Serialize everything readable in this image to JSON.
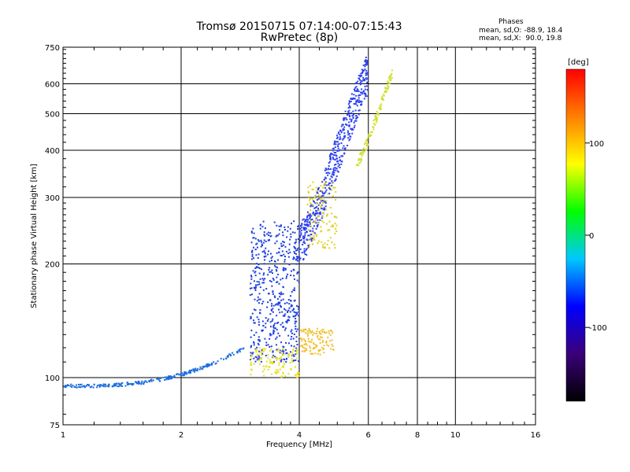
{
  "chart_data": {
    "type": "scatter",
    "title": "Tromsø 20150715 07:14:00-07:15:43",
    "subtitle": "RwPretec (8p)",
    "xlabel": "Frequency [MHz]",
    "ylabel": "Stationary phase Virtual Height [km]",
    "x_scale": "log",
    "y_scale": "log",
    "xlim": [
      1,
      16
    ],
    "ylim": [
      75,
      750
    ],
    "x_ticks": [
      1,
      2,
      4,
      6,
      8,
      10,
      16
    ],
    "y_ticks": [
      75,
      100,
      200,
      300,
      400,
      500,
      600,
      750
    ],
    "grid": true,
    "phases_info": {
      "title": "Phases",
      "line_o": "mean, sd,O: -88.9, 18.4",
      "line_x": "mean, sd,X:  90.0, 19.8"
    },
    "colorbar": {
      "label": "[deg]",
      "ticks": [
        100,
        0,
        -100
      ],
      "range": [
        -180,
        180
      ],
      "colors": [
        "#000000",
        "#3b007a",
        "#0000ff",
        "#00c8ff",
        "#00ff00",
        "#ffff00",
        "#ff8000",
        "#ff0000"
      ]
    },
    "series": [
      {
        "color": "#1f6fe0",
        "x_range": [
          1.0,
          2.9
        ],
        "y_range": [
          95,
          120
        ],
        "trace": "lower layer, rising 95 to 118 km",
        "phase": -110
      },
      {
        "color": "#1e3fe0",
        "x_range": [
          3.0,
          4.0
        ],
        "y_range": [
          110,
          260
        ],
        "trace": "E/F1 region cloud",
        "phase": -115
      },
      {
        "color": "#2a3ff0",
        "x_range": [
          4.0,
          6.0
        ],
        "y_range": [
          230,
          650
        ],
        "trace": "F2 o-mode trace",
        "phase": -105
      },
      {
        "color": "#e6e020",
        "x_range": [
          3.0,
          4.0
        ],
        "y_range": [
          100,
          120
        ],
        "trace": "x-mode lower",
        "phase": 100
      },
      {
        "color": "#e0d020",
        "x_range": [
          4.2,
          5.0
        ],
        "y_range": [
          220,
          330
        ],
        "trace": "x-mode middle",
        "phase": 110
      },
      {
        "color": "#f0c030",
        "x_range": [
          4.0,
          4.9
        ],
        "y_range": [
          115,
          135
        ],
        "trace": "x-mode lower cluster",
        "phase": 120
      },
      {
        "color": "#d0e030",
        "x_range": [
          5.6,
          6.9
        ],
        "y_range": [
          370,
          640
        ],
        "trace": "x-mode upper",
        "phase": 95
      }
    ]
  }
}
